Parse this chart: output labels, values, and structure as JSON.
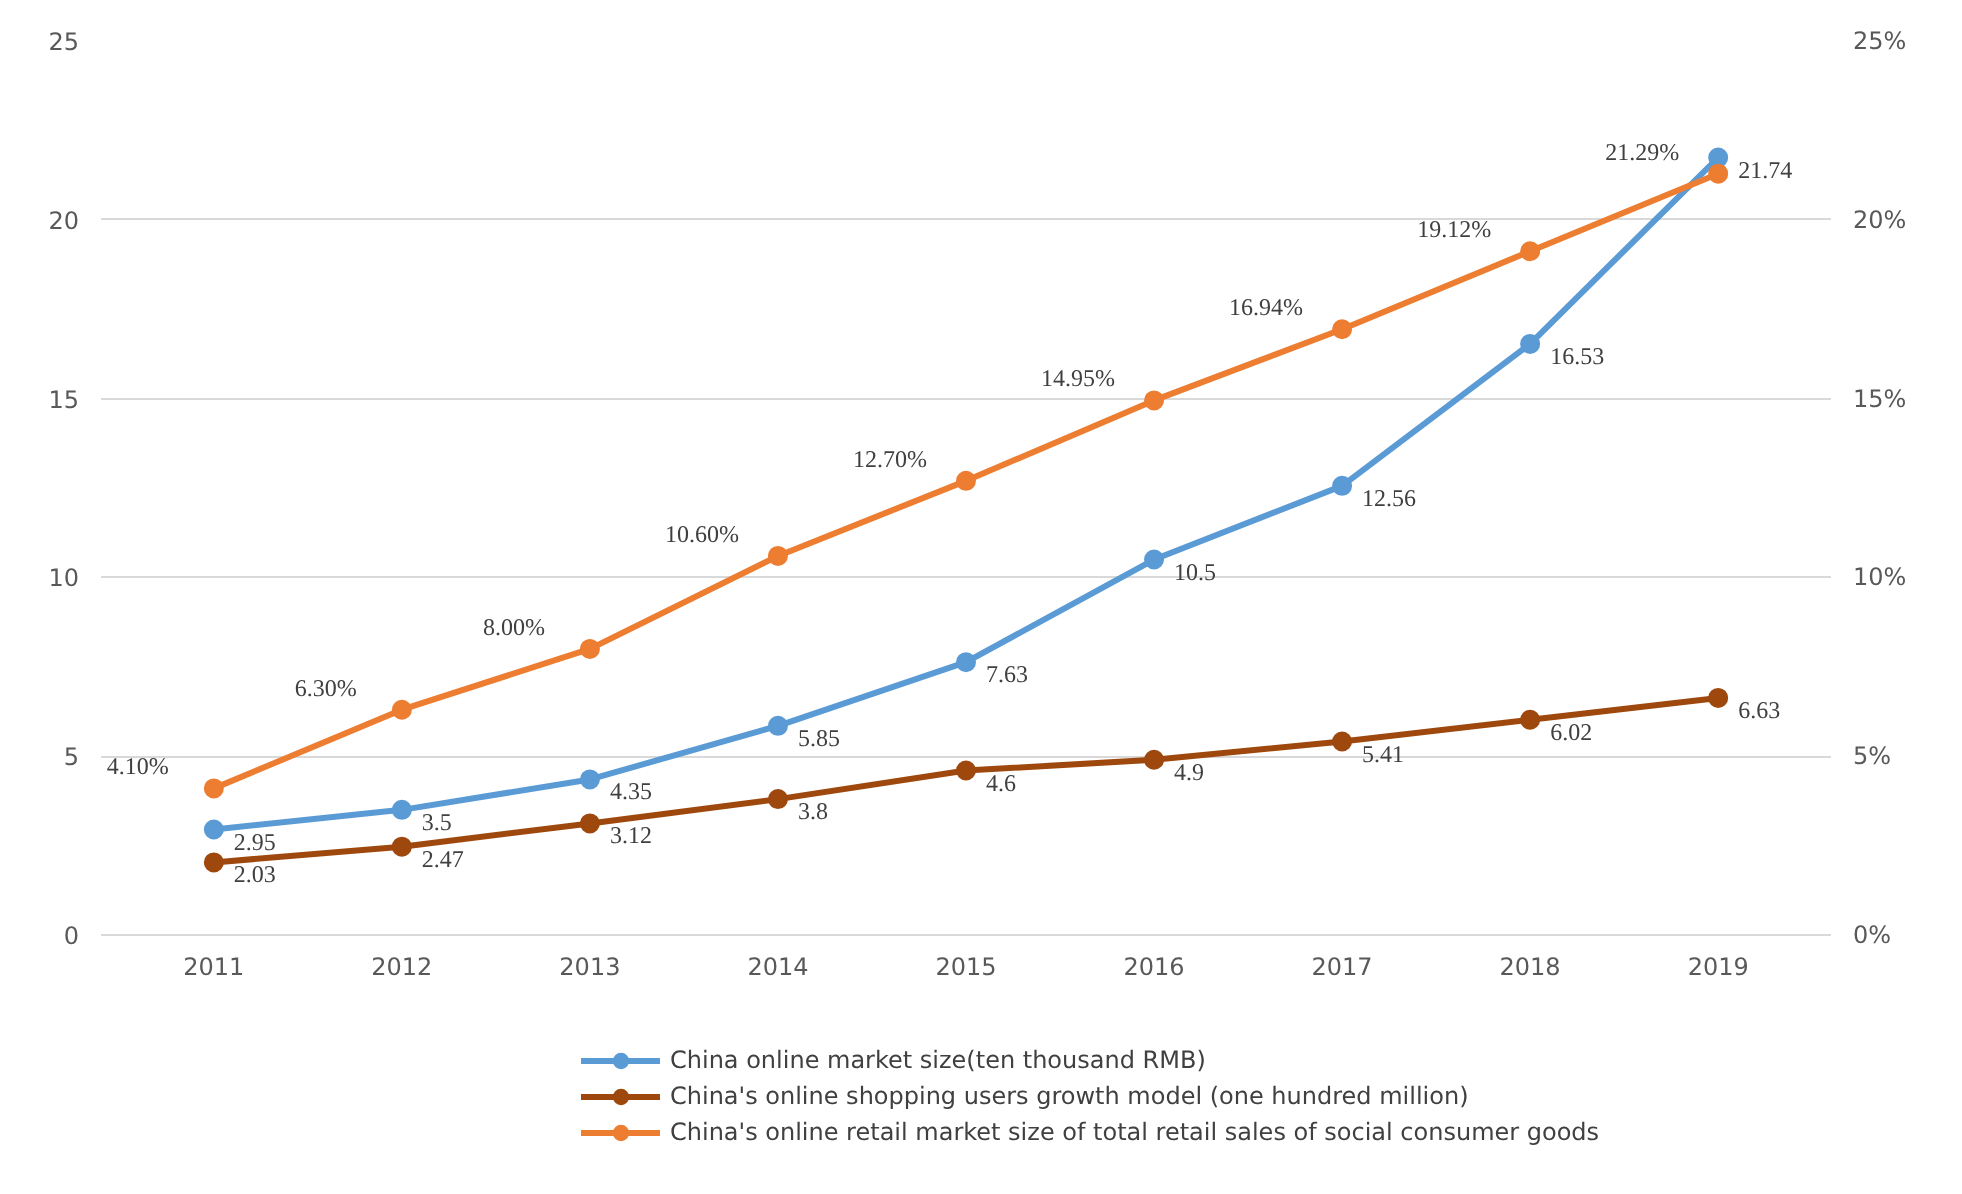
{
  "chart_data": {
    "type": "line",
    "categories": [
      "2011",
      "2012",
      "2013",
      "2014",
      "2015",
      "2016",
      "2017",
      "2018",
      "2019"
    ],
    "series": [
      {
        "name": "China online market size(ten thousand RMB)",
        "color": "#5b9bd5",
        "values": [
          2.95,
          3.5,
          4.35,
          5.85,
          7.63,
          10.5,
          12.56,
          16.53,
          21.74
        ],
        "value_labels": [
          "2.95",
          "3.5",
          "4.35",
          "5.85",
          "7.63",
          "10.5",
          "12.56",
          "16.53",
          "21.74"
        ]
      },
      {
        "name": "China's online shopping users growth model (one hundred million)",
        "color": "#9e480e",
        "values": [
          2.03,
          2.47,
          3.12,
          3.8,
          4.6,
          4.9,
          5.41,
          6.02,
          6.63
        ],
        "value_labels": [
          "2.03",
          "2.47",
          "3.12",
          "3.8",
          "4.6",
          "4.9",
          "5.41",
          "6.02",
          "6.63"
        ]
      },
      {
        "name": "China's online retail market size of total retail sales of social consumer goods",
        "color": "#ed7d31",
        "axis": "y2",
        "values": [
          4.1,
          6.3,
          8.0,
          10.6,
          12.7,
          14.95,
          16.94,
          19.12,
          21.29
        ],
        "value_labels": [
          "4.10%",
          "6.30%",
          "8.00%",
          "10.60%",
          "12.70%",
          "14.95%",
          "16.94%",
          "19.12%",
          "21.29%"
        ]
      }
    ],
    "ylim": [
      0,
      25
    ],
    "yticks": [
      0,
      5,
      10,
      15,
      20,
      25
    ],
    "y2lim": [
      0,
      25
    ],
    "y2ticks": [
      {
        "value": 0,
        "label": "0%"
      },
      {
        "value": 5,
        "label": "5%"
      },
      {
        "value": 10,
        "label": "10%"
      },
      {
        "value": 15,
        "label": "15%"
      },
      {
        "value": 20,
        "label": "20%"
      },
      {
        "value": 25,
        "label": "25%"
      }
    ],
    "grid": "y",
    "legend": "bottom",
    "marker": "circle",
    "line_style": "solid"
  }
}
